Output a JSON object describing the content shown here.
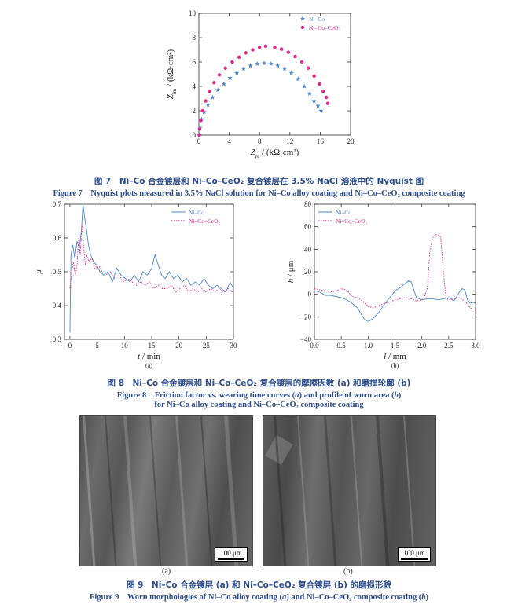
{
  "chart_data": [
    {
      "type": "scatter",
      "id": "nyquist",
      "xlabel_italic": "Z",
      "xlabel_sub": "re",
      "xlabel_rest": " / (kΩ·cm²)",
      "ylabel_italic": "Z",
      "ylabel_sub": "im",
      "ylabel_rest": " / (kΩ·cm²)",
      "xlim": [
        0,
        20
      ],
      "ylim": [
        0,
        10
      ],
      "xticks": [
        "0",
        "4",
        "8",
        "12",
        "16",
        "20"
      ],
      "yticks": [
        "0",
        "2",
        "4",
        "6",
        "8",
        "10"
      ],
      "legend_position": "top-right",
      "series": [
        {
          "name": "Ni–Co",
          "marker": "star",
          "color": "#4f86c6",
          "x": [
            0.05,
            0.15,
            0.35,
            0.7,
            1.2,
            1.8,
            2.5,
            3.3,
            4.1,
            5.0,
            5.9,
            6.8,
            7.7,
            8.6,
            9.5,
            10.4,
            11.3,
            12.2,
            13.1,
            13.9,
            14.6,
            15.2,
            15.7,
            16.1
          ],
          "y": [
            0.0,
            0.6,
            1.3,
            1.9,
            2.5,
            3.1,
            3.7,
            4.2,
            4.7,
            5.1,
            5.45,
            5.7,
            5.85,
            5.9,
            5.85,
            5.7,
            5.45,
            5.1,
            4.6,
            4.0,
            3.4,
            2.8,
            2.4,
            2.0
          ]
        },
        {
          "name": "Ni–Co–CeO₂",
          "marker": "circle",
          "color": "#e0288c",
          "x": [
            0.05,
            0.1,
            0.25,
            0.5,
            0.9,
            1.4,
            2.0,
            2.7,
            3.5,
            4.4,
            5.3,
            6.2,
            7.1,
            8.0,
            8.8,
            10.0,
            10.9,
            11.8,
            12.7,
            13.6,
            14.4,
            15.2,
            15.9,
            16.4,
            16.8,
            17.0
          ],
          "y": [
            0.0,
            0.5,
            1.2,
            2.0,
            2.8,
            3.6,
            4.3,
            4.95,
            5.5,
            6.0,
            6.4,
            6.75,
            7.0,
            7.2,
            7.3,
            7.2,
            7.05,
            6.8,
            6.45,
            6.0,
            5.5,
            4.85,
            4.2,
            3.6,
            3.1,
            2.6
          ]
        }
      ]
    },
    {
      "type": "line",
      "id": "friction",
      "sublabel": "(a)",
      "xlabel_italic": "t",
      "xlabel_rest": " / min",
      "ylabel_italic": "μ",
      "xlim": [
        -1,
        30
      ],
      "ylim": [
        0.3,
        0.7
      ],
      "xticks": [
        "0",
        "5",
        "10",
        "15",
        "20",
        "25",
        "30"
      ],
      "yticks": [
        "0.3",
        "0.4",
        "0.5",
        "0.6",
        "0.7"
      ],
      "legend_position": "top-right",
      "series": [
        {
          "name": "Ni–Co",
          "color": "#4f86c6",
          "dash": "solid",
          "x": [
            0,
            0.2,
            0.5,
            0.9,
            1.3,
            1.7,
            2.1,
            2.4,
            2.7,
            3.0,
            3.4,
            3.8,
            4.3,
            4.9,
            5.5,
            6.2,
            7.0,
            7.8,
            8.6,
            9.4,
            10.2,
            11.0,
            11.8,
            12.6,
            13.4,
            14.2,
            15.0,
            15.6,
            16.2,
            16.8,
            17.5,
            18.2,
            19.0,
            19.8,
            20.6,
            21.4,
            22.2,
            23.0,
            23.8,
            24.6,
            25.4,
            26.2,
            27.0,
            27.8,
            28.6,
            29.4,
            30.0
          ],
          "y": [
            0.32,
            0.55,
            0.58,
            0.54,
            0.59,
            0.57,
            0.62,
            0.7,
            0.66,
            0.63,
            0.58,
            0.55,
            0.53,
            0.52,
            0.5,
            0.49,
            0.5,
            0.47,
            0.51,
            0.49,
            0.48,
            0.47,
            0.49,
            0.47,
            0.5,
            0.49,
            0.51,
            0.55,
            0.52,
            0.49,
            0.48,
            0.5,
            0.48,
            0.49,
            0.47,
            0.48,
            0.46,
            0.47,
            0.46,
            0.48,
            0.46,
            0.45,
            0.46,
            0.45,
            0.44,
            0.47,
            0.45
          ]
        },
        {
          "name": "Ni–Co–CeO₂",
          "color": "#e0288c",
          "dash": "dotted",
          "x": [
            0,
            0.3,
            0.6,
            1.0,
            1.3,
            1.6,
            1.9,
            2.2,
            2.5,
            2.8,
            3.1,
            3.5,
            4.0,
            4.6,
            5.2,
            5.9,
            6.6,
            7.4,
            8.2,
            9.0,
            9.8,
            10.6,
            11.4,
            12.2,
            13.0,
            13.8,
            14.6,
            15.4,
            16.2,
            17.0,
            17.8,
            18.6,
            19.4,
            20.2,
            21.0,
            21.8,
            22.6,
            23.4,
            24.2,
            25.0,
            25.8,
            26.6,
            27.4,
            28.2,
            29.0,
            29.8
          ],
          "y": [
            0.45,
            0.49,
            0.53,
            0.49,
            0.52,
            0.6,
            0.55,
            0.64,
            0.58,
            0.52,
            0.55,
            0.53,
            0.54,
            0.51,
            0.52,
            0.5,
            0.49,
            0.5,
            0.48,
            0.49,
            0.47,
            0.48,
            0.47,
            0.46,
            0.47,
            0.46,
            0.47,
            0.45,
            0.46,
            0.45,
            0.45,
            0.46,
            0.44,
            0.45,
            0.46,
            0.44,
            0.45,
            0.44,
            0.45,
            0.44,
            0.45,
            0.44,
            0.45,
            0.44,
            0.45,
            0.44
          ]
        }
      ]
    },
    {
      "type": "line",
      "id": "profile",
      "sublabel": "(b)",
      "xlabel_italic": "l",
      "xlabel_rest": " / mm",
      "ylabel_italic": "h",
      "ylabel_rest": " / μm",
      "xlim": [
        0,
        3.0
      ],
      "ylim": [
        -40,
        80
      ],
      "xticks": [
        "0.0",
        "0.5",
        "1.0",
        "1.5",
        "2.0",
        "2.5",
        "3.0"
      ],
      "yticks": [
        "−40",
        "−20",
        "0",
        "20",
        "40",
        "60",
        "80"
      ],
      "legend_position": "top-left",
      "series": [
        {
          "name": "Ni–Co",
          "color": "#4f86c6",
          "dash": "solid",
          "x": [
            0.0,
            0.1,
            0.2,
            0.3,
            0.4,
            0.5,
            0.6,
            0.7,
            0.8,
            0.9,
            0.95,
            1.0,
            1.05,
            1.1,
            1.2,
            1.3,
            1.4,
            1.5,
            1.6,
            1.7,
            1.75,
            1.8,
            1.85,
            1.9,
            2.0,
            2.1,
            2.2,
            2.3,
            2.4,
            2.5,
            2.6,
            2.7,
            2.75,
            2.8,
            2.85,
            2.9,
            2.95,
            3.0
          ],
          "y": [
            3,
            2,
            -1,
            -1,
            -2,
            -3,
            -5,
            -8,
            -12,
            -20,
            -23,
            -24,
            -23,
            -21,
            -16,
            -9,
            -3,
            3,
            6,
            10,
            12,
            11,
            4,
            -3,
            -5,
            -4,
            -4,
            -5,
            -4,
            -3,
            -6,
            2,
            5,
            4,
            -5,
            -8,
            -7,
            -8
          ]
        },
        {
          "name": "Ni–Co–CeO₂",
          "color": "#e0288c",
          "dash": "dotted",
          "x": [
            0.0,
            0.1,
            0.2,
            0.3,
            0.4,
            0.5,
            0.6,
            0.7,
            0.8,
            0.9,
            1.0,
            1.1,
            1.2,
            1.3,
            1.4,
            1.5,
            1.6,
            1.7,
            1.8,
            1.9,
            2.0,
            2.05,
            2.1,
            2.15,
            2.2,
            2.25,
            2.3,
            2.35,
            2.4,
            2.45,
            2.5,
            2.6,
            2.7,
            2.8,
            2.9,
            3.0
          ],
          "y": [
            5,
            4,
            3,
            2,
            3,
            5,
            4,
            -2,
            -3,
            -6,
            -11,
            -12,
            -10,
            -8,
            -7,
            -5,
            -4,
            -3,
            -4,
            -6,
            -5,
            -2,
            5,
            38,
            50,
            53,
            53,
            51,
            20,
            -3,
            -5,
            -4,
            -3,
            -6,
            -12,
            -14
          ]
        }
      ]
    }
  ],
  "figure7": {
    "caption_cn": "图 7　Ni–Co 合金镀层和 Ni–Co–CeO₂ 复合镀层在 3.5% NaCl 溶液中的 Nyquist 图",
    "caption_en": "Figure 7　Nyquist plots measured in 3.5% NaCl solution for Ni–Co alloy coating and Ni–Co–CeO₂ composite coating"
  },
  "figure8": {
    "caption_cn": "图 8　Ni–Co 合金镀层和 Ni–Co–CeO₂ 复合镀层的摩擦因数 (a) 和磨损轮廓 (b)",
    "caption_en_1a": "Figure 8　Friction factor ",
    "caption_en_1b": "vs.",
    "caption_en_1c": " wearing time curves (",
    "caption_en_1d": "a",
    "caption_en_1e": ") and profile of worn area (",
    "caption_en_1f": "b",
    "caption_en_1g": ")",
    "caption_en_2": "for Ni–Co alloy coating and Ni–Co–CeO₂ composite coating"
  },
  "figure9": {
    "label_a": "(a)",
    "label_b": "(b)",
    "scale_a": "100 μm",
    "scale_b": "100 μm",
    "caption_cn": "图 9　Ni–Co 合金镀层 (a) 和 Ni–Co–CeO₂ 复合镀层 (b) 的磨损形貌",
    "caption_en_a": "Figure 9　Worn morphologies of Ni–Co alloy coating (",
    "caption_en_b": "a",
    "caption_en_c": ") and Ni–Co–CeO₂ composite coating (",
    "caption_en_d": "b",
    "caption_en_e": ")"
  }
}
